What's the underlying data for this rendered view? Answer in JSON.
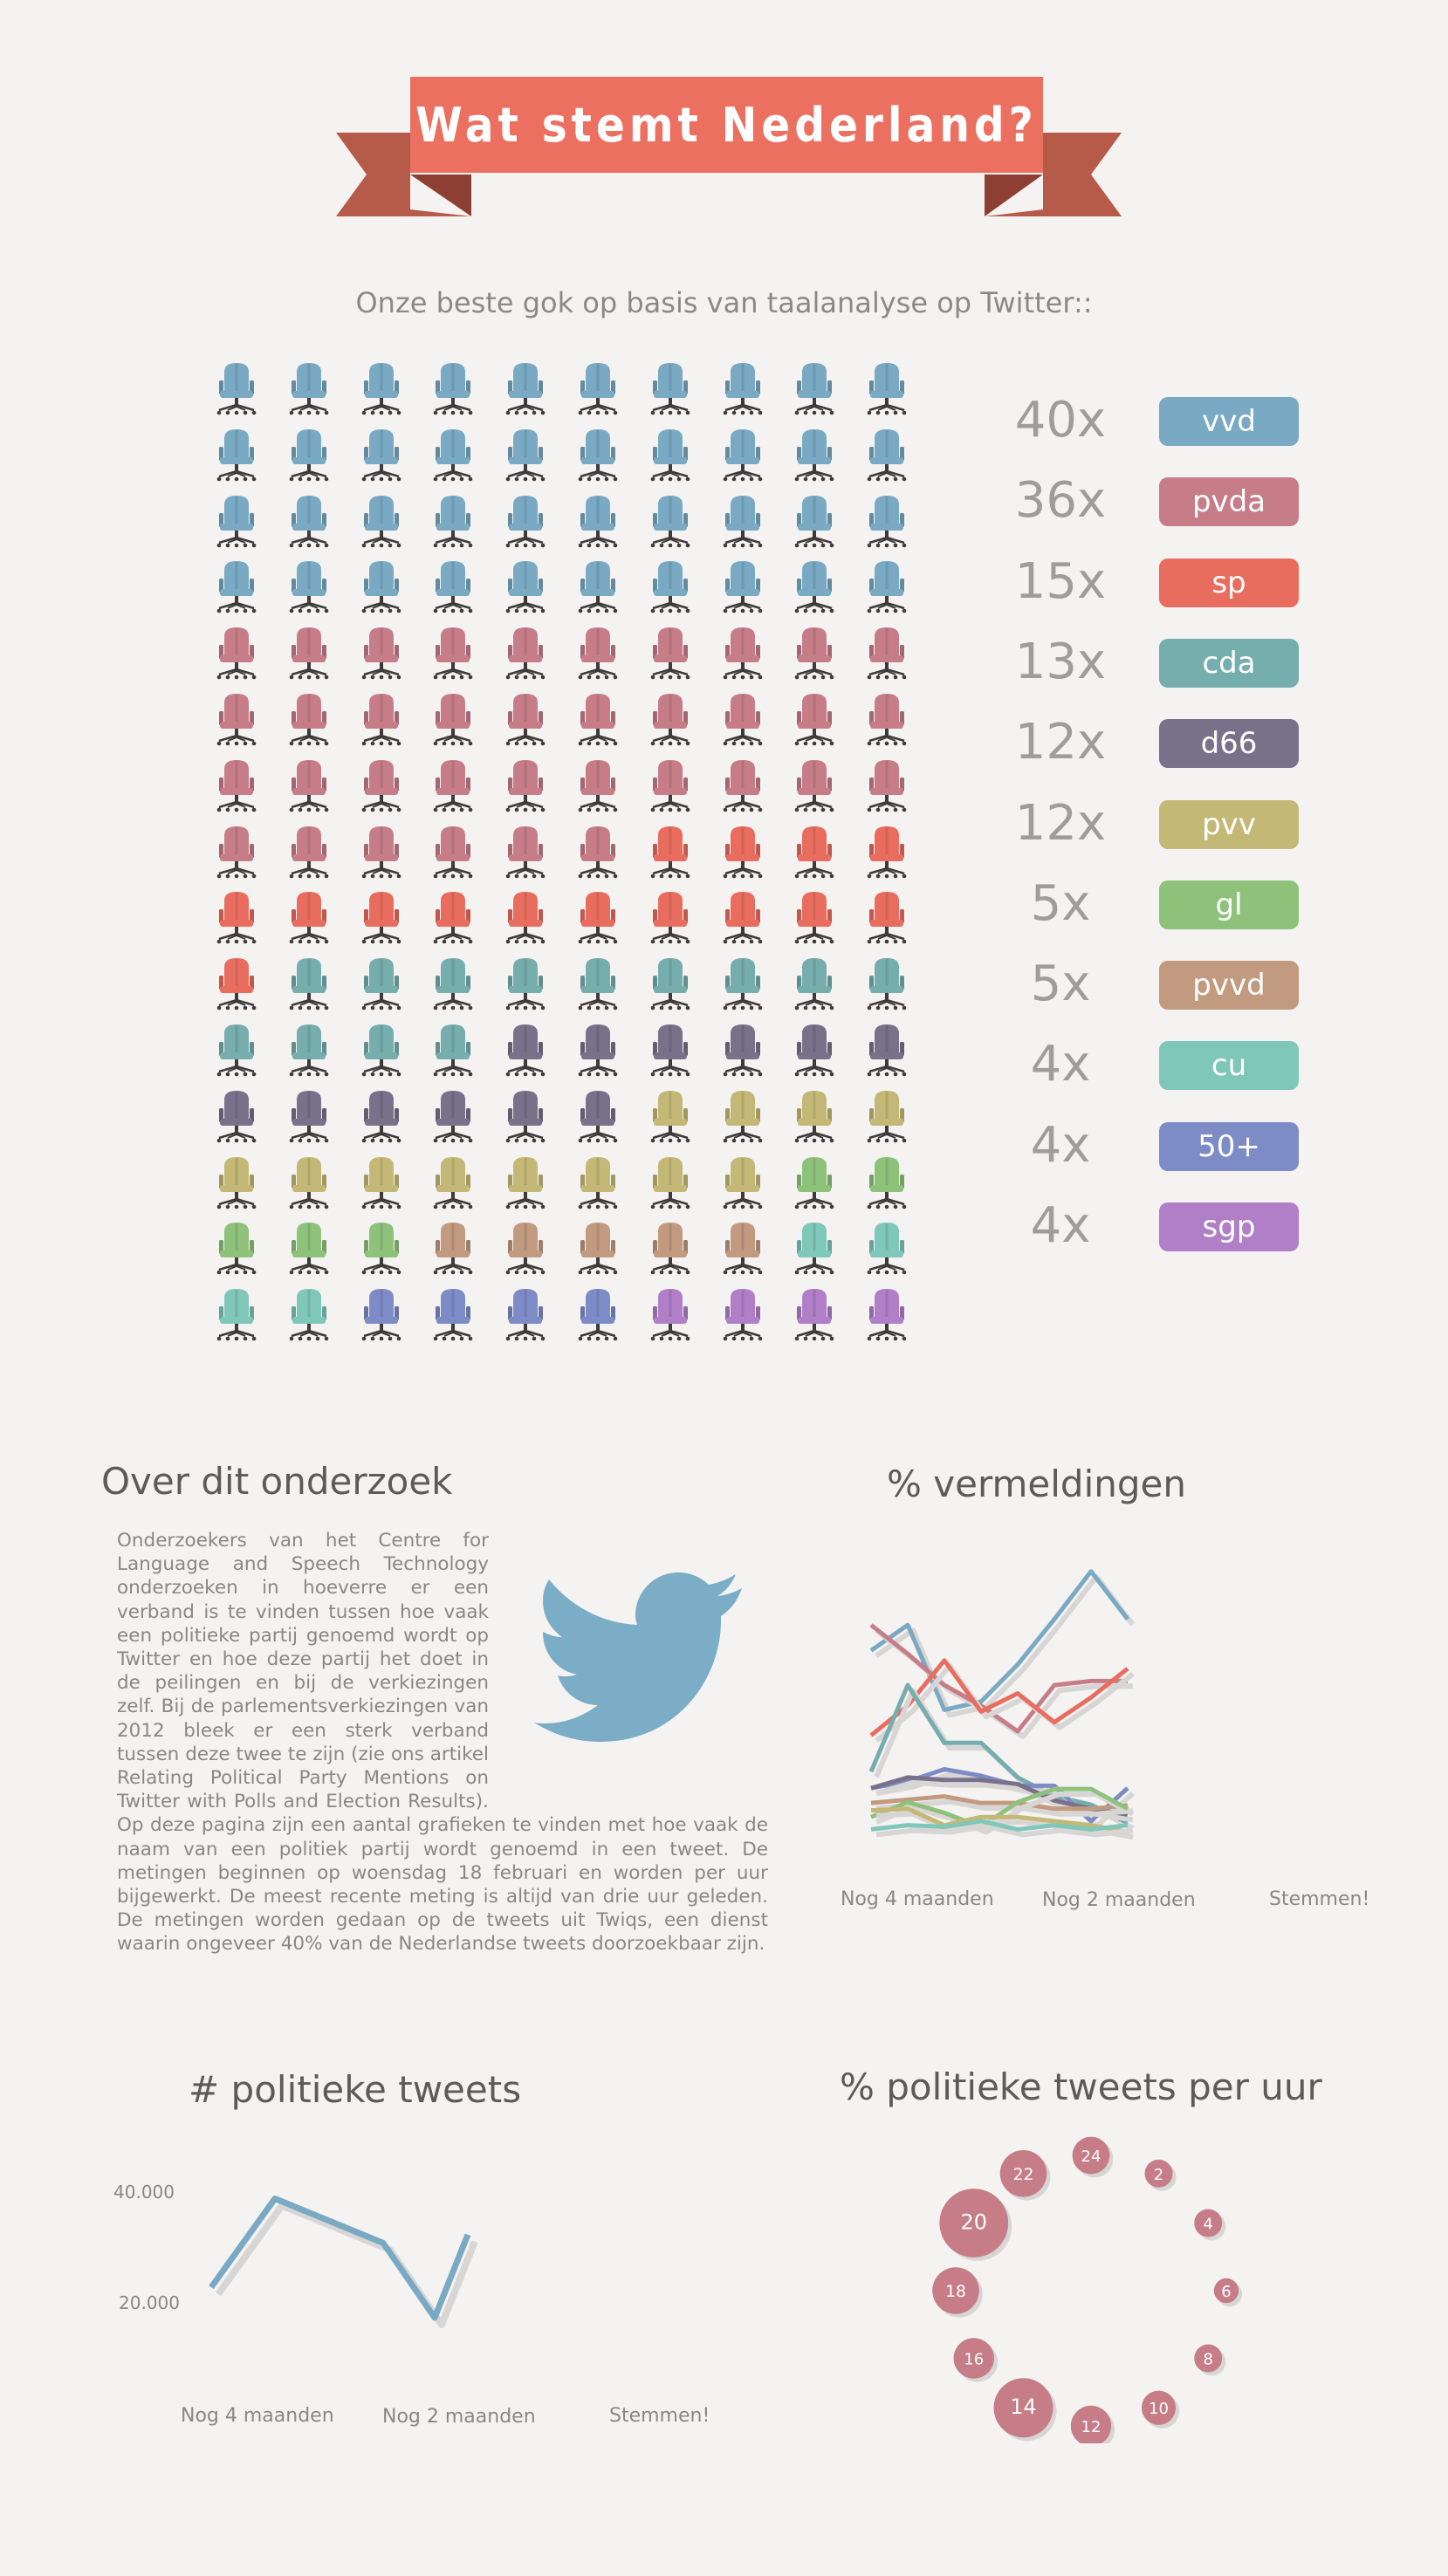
{
  "header": {
    "title": "Wat stemt Nederland?",
    "subtitle": "Onze beste gok op basis van taalanalyse op Twitter::"
  },
  "parties": [
    {
      "label": "vvd",
      "count_label": "40x",
      "seats": 40,
      "color": "#79a9c3"
    },
    {
      "label": "pvda",
      "count_label": "36x",
      "seats": 36,
      "color": "#c67d88"
    },
    {
      "label": "sp",
      "count_label": "15x",
      "seats": 15,
      "color": "#e96d5e"
    },
    {
      "label": "cda",
      "count_label": "13x",
      "seats": 13,
      "color": "#76adad"
    },
    {
      "label": "d66",
      "count_label": "12x",
      "seats": 12,
      "color": "#79718a"
    },
    {
      "label": "pvv",
      "count_label": "12x",
      "seats": 12,
      "color": "#c4b876"
    },
    {
      "label": "gl",
      "count_label": "5x",
      "seats": 5,
      "color": "#8ec27b"
    },
    {
      "label": "pvvd",
      "count_label": "5x",
      "seats": 5,
      "color": "#c29a80"
    },
    {
      "label": "cu",
      "count_label": "4x",
      "seats": 4,
      "color": "#7fc7b8"
    },
    {
      "label": "50+",
      "count_label": "4x",
      "seats": 4,
      "color": "#7d8cc6"
    },
    {
      "label": "sgp",
      "count_label": "4x",
      "seats": 4,
      "color": "#b07fc8"
    }
  ],
  "about": {
    "title": "Over dit onderzoek",
    "text": "Onderzoekers van het Centre for Language and Speech Technology onderzoeken in hoeverre er een verband is te vinden tussen hoe vaak een politieke partij genoemd wordt op Twitter en hoe deze partij het doet in de peilingen en bij de verkiezingen zelf. Bij de parlementsverkiezingen van 2012 bleek er een sterk verband tussen deze twee te zijn (zie ons artikel Relating Political Party Mentions on Twitter with Polls and Election Results). Op deze pagina zijn een aantal grafieken te vinden met hoe vaak de naam van een politiek partij wordt genoemd in een tweet. De metingen beginnen op woensdag 18 februari en worden per uur bijgewerkt. De meest recente meting is altijd van drie uur geleden. De metingen worden gedaan op de tweets uit Twiqs, een dienst waarin ongeveer 40% van de Nederlandse tweets doorzoekbaar zijn.",
    "icon": "twitter-bird-icon"
  },
  "chart_data": [
    {
      "type": "line",
      "title": "% vermeldingen",
      "x_tick_labels": [
        "Nog 4 maanden",
        "Nog 2 maanden",
        "Stemmen!"
      ],
      "x": [
        0,
        1,
        2,
        3,
        4,
        5,
        6,
        7
      ],
      "series": [
        {
          "color": "#79a9c3",
          "values": [
            24.2,
            27.3,
            17.0,
            18.0,
            22.5,
            28.0,
            33.8,
            28.0
          ]
        },
        {
          "color": "#c67d88",
          "values": [
            27.3,
            23.8,
            20.0,
            17.5,
            14.4,
            20.0,
            20.5,
            20.5
          ]
        },
        {
          "color": "#e96d5e",
          "values": [
            13.9,
            17.5,
            23.0,
            16.8,
            19.0,
            15.5,
            18.5,
            22.0
          ]
        },
        {
          "color": "#76adad",
          "values": [
            9.5,
            20.0,
            13.0,
            13.0,
            8.8,
            6.5,
            5.5,
            3.3
          ]
        },
        {
          "color": "#7d8cc6",
          "values": [
            7.5,
            8.3,
            9.8,
            9.0,
            7.8,
            7.8,
            3.5,
            7.5
          ]
        },
        {
          "color": "#79718a",
          "values": [
            7.5,
            8.8,
            8.5,
            8.5,
            8.0,
            6.0,
            5.0,
            4.3
          ]
        },
        {
          "color": "#c29a80",
          "values": [
            5.7,
            6.1,
            6.5,
            5.7,
            5.7,
            5.0,
            5.0,
            5.4
          ]
        },
        {
          "color": "#8ec27b",
          "values": [
            4.0,
            5.8,
            4.5,
            2.8,
            5.8,
            7.4,
            7.4,
            5.0
          ]
        },
        {
          "color": "#c4b876",
          "values": [
            4.8,
            5.0,
            3.0,
            4.0,
            4.0,
            3.5,
            3.0,
            2.2
          ]
        },
        {
          "color": "#7fc7b8",
          "values": [
            2.5,
            3.0,
            2.8,
            3.5,
            2.5,
            3.0,
            2.5,
            3.0
          ]
        }
      ]
    },
    {
      "type": "line",
      "title": "# politieke tweets",
      "y_tick_labels": [
        "40.000",
        "20.000"
      ],
      "y_ticks": [
        40000,
        20000
      ],
      "x_tick_labels": [
        "Nog 4 maanden",
        "Nog 2 maanden",
        "Stemmen!"
      ],
      "x": [
        0,
        1,
        2,
        3,
        4
      ],
      "series": [
        {
          "color": "#79a9c3",
          "values": [
            22500,
            38500,
            30500,
            17000,
            32000
          ]
        }
      ]
    },
    {
      "type": "scatter",
      "title": "% politieke tweets per uur",
      "series": [
        {
          "color": "#c67d88",
          "points": [
            {
              "hour": "2",
              "value": 2.5
            },
            {
              "hour": "4",
              "value": 2.5
            },
            {
              "hour": "6",
              "value": 2.0
            },
            {
              "hour": "8",
              "value": 2.5
            },
            {
              "hour": "10",
              "value": 3.5
            },
            {
              "hour": "12",
              "value": 4.5
            },
            {
              "hour": "14",
              "value": 7.5
            },
            {
              "hour": "16",
              "value": 4.5
            },
            {
              "hour": "18",
              "value": 5.5
            },
            {
              "hour": "20",
              "value": 9.0
            },
            {
              "hour": "22",
              "value": 5.5
            },
            {
              "hour": "24",
              "value": 4.0
            }
          ]
        }
      ]
    }
  ]
}
